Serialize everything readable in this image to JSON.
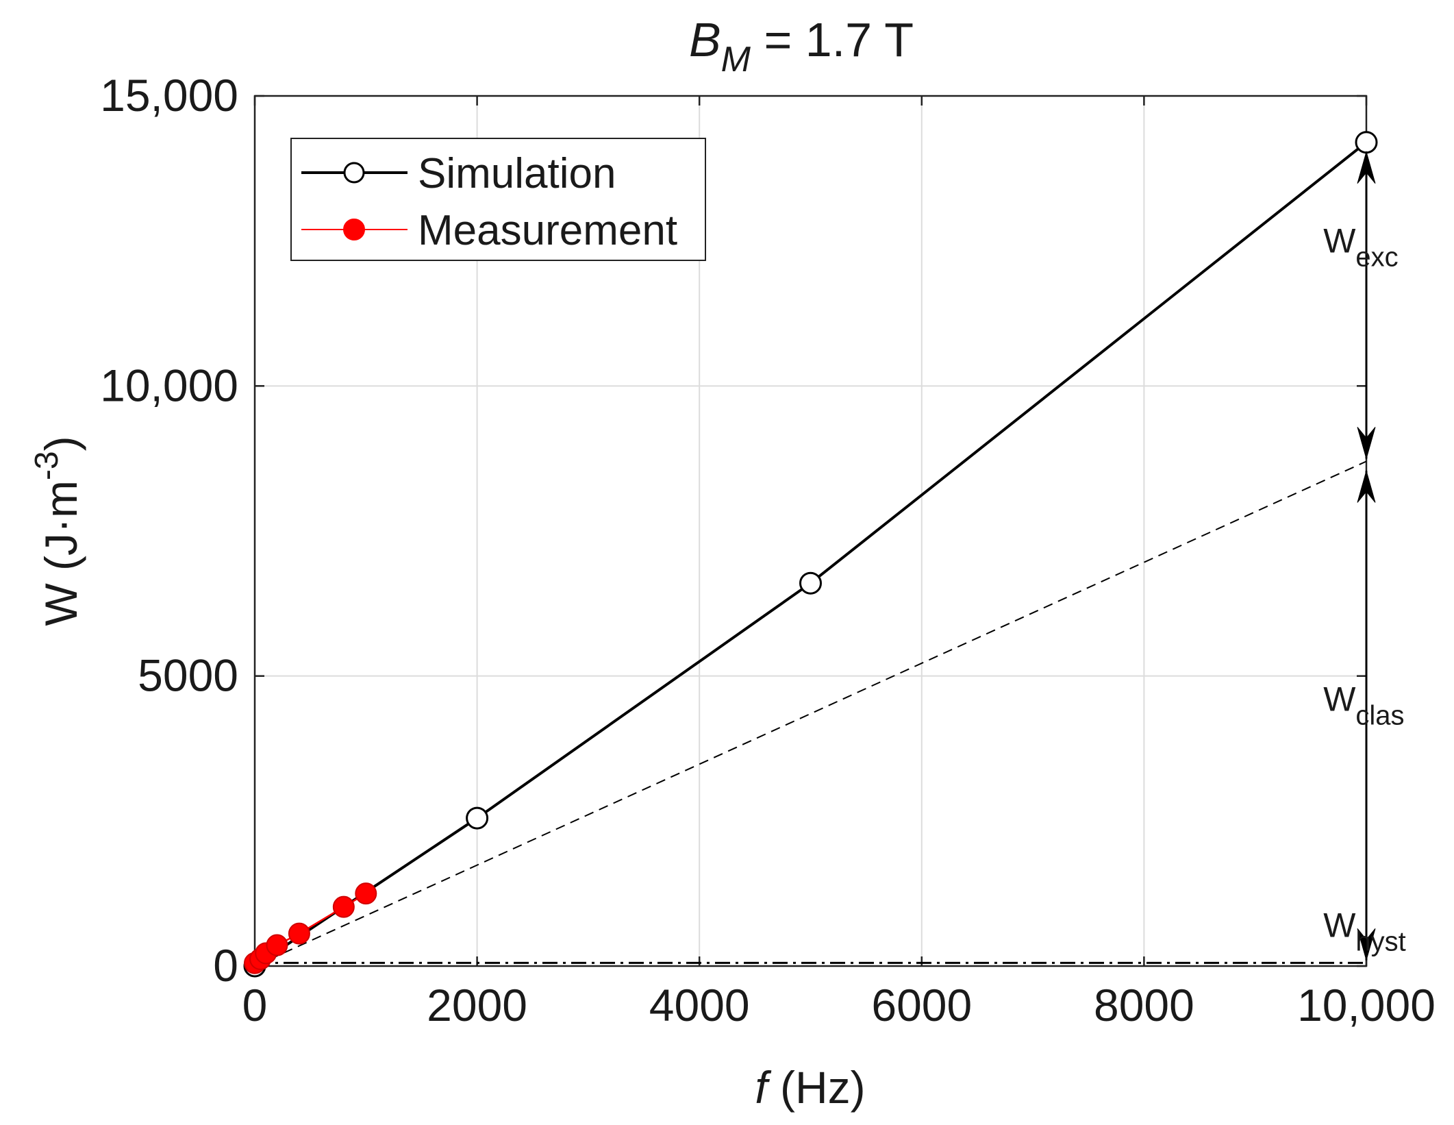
{
  "chart_data": {
    "type": "line",
    "title": {
      "main": "B",
      "sub": "M",
      "suffix": " = 1.7 T"
    },
    "xlabel": {
      "italic": "f",
      "rest": " (Hz)"
    },
    "ylabel": {
      "main": "W (J·m",
      "sup": "-3",
      "close": ")"
    },
    "xlim": [
      0,
      10000
    ],
    "ylim": [
      0,
      15000
    ],
    "x_ticks": [
      0,
      2000,
      4000,
      6000,
      8000,
      10000
    ],
    "x_tick_labels": [
      "0",
      "2000",
      "4000",
      "6000",
      "8000",
      "10,000"
    ],
    "y_ticks": [
      0,
      5000,
      10000,
      15000
    ],
    "y_tick_labels": [
      "0",
      "5000",
      "10,000",
      "15,000"
    ],
    "grid": true,
    "legend_position": "top-left",
    "series": [
      {
        "name": "Simulation",
        "color": "#000000",
        "marker": "open-circle",
        "x": [
          0,
          2000,
          5000,
          10000
        ],
        "y": [
          0,
          2550,
          6600,
          14200
        ]
      },
      {
        "name": "Measurement",
        "color": "#ff0000",
        "marker": "filled-circle",
        "x": [
          0,
          50,
          100,
          200,
          400,
          800,
          1000
        ],
        "y": [
          50,
          120,
          220,
          360,
          560,
          1020,
          1250
        ]
      }
    ],
    "reference_lines": [
      {
        "name": "classical-loss",
        "style": "dashed",
        "color": "#000000",
        "x": [
          0,
          10000
        ],
        "y": [
          0,
          8700
        ]
      },
      {
        "name": "hysteresis-loss",
        "style": "dash-dot",
        "color": "#000000",
        "x": [
          0,
          10000
        ],
        "y": [
          55,
          55
        ]
      }
    ],
    "annotations": [
      {
        "name": "W-exc",
        "base": "W",
        "sub": "exc",
        "x": 9650,
        "y": 12300,
        "from": 14200,
        "to": 8700
      },
      {
        "name": "W-clas",
        "base": "W",
        "sub": "clas",
        "x": 9650,
        "y": 4400,
        "from": 8700,
        "to": 55
      },
      {
        "name": "W-hyst",
        "base": "W",
        "sub": "hyst",
        "x": 9650,
        "y": 500
      }
    ]
  }
}
